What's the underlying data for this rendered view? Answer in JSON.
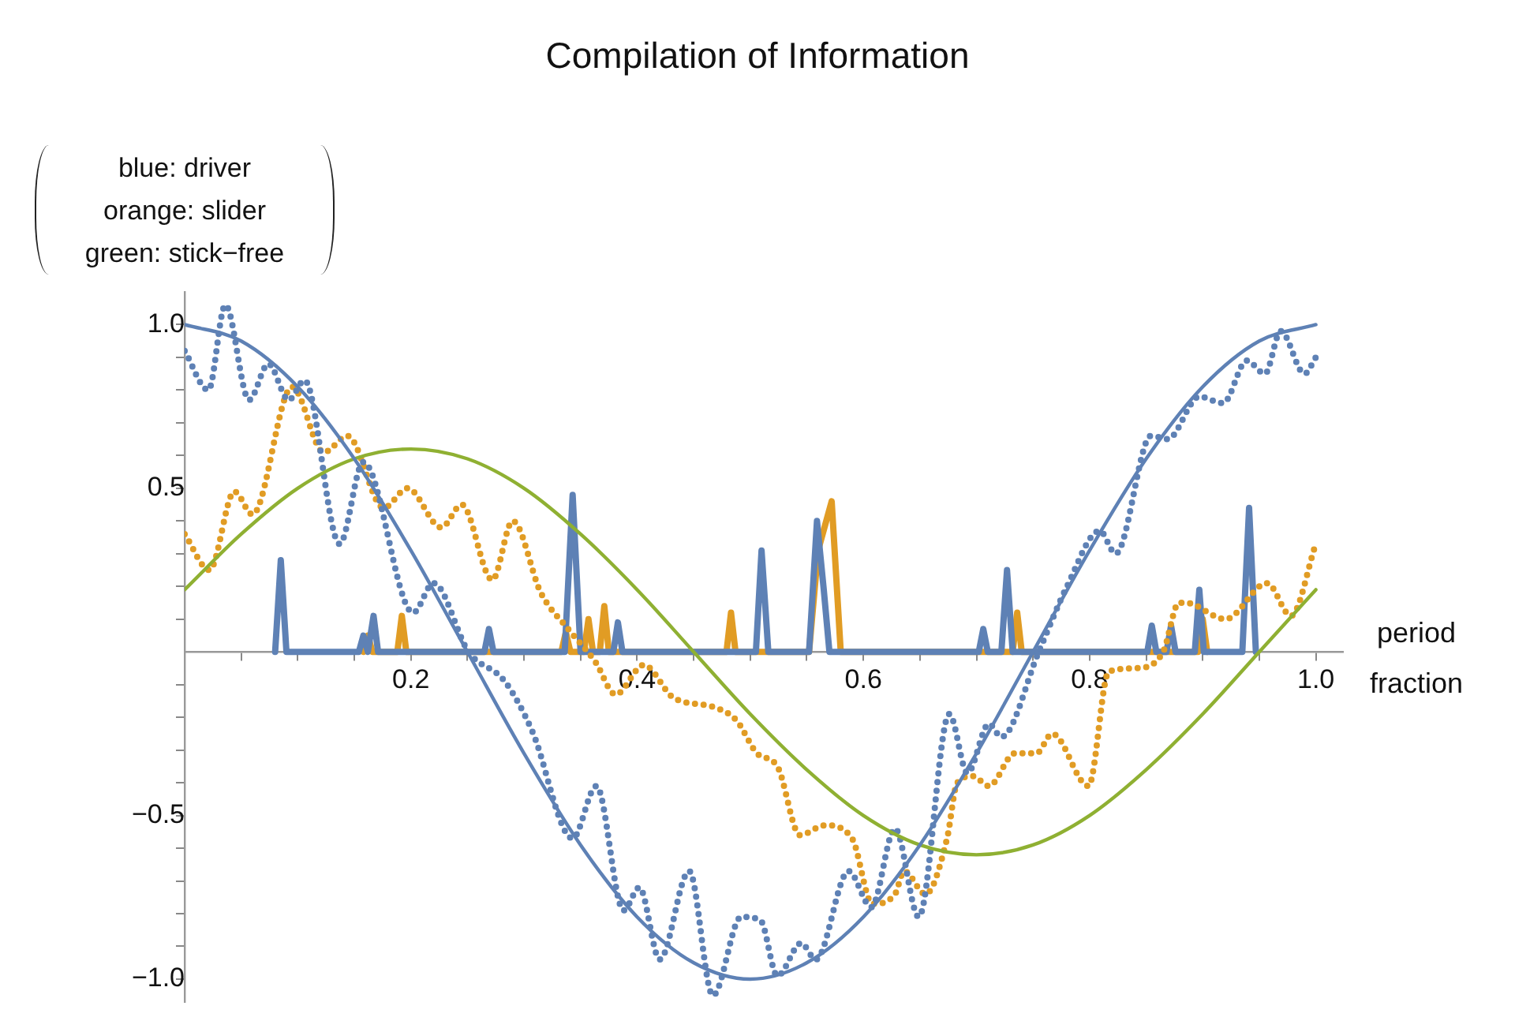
{
  "chart_data": {
    "type": "line",
    "title": "Compilation of Information",
    "xlabel": "period\nfraction",
    "ylabel": "blue: driver\norange: slider\ngreen: stick−free",
    "xlim": [
      0,
      1.024
    ],
    "ylim": [
      -1.07,
      1.1
    ],
    "xticks": [
      {
        "value": 0.05,
        "label": null
      },
      {
        "value": 0.1,
        "label": null
      },
      {
        "value": 0.15,
        "label": null
      },
      0.2,
      {
        "value": 0.25,
        "label": null
      },
      {
        "value": 0.3,
        "label": null
      },
      {
        "value": 0.35,
        "label": null
      },
      0.4,
      {
        "value": 0.45,
        "label": null
      },
      {
        "value": 0.5,
        "label": null
      },
      {
        "value": 0.55,
        "label": null
      },
      0.6,
      {
        "value": 0.65,
        "label": null
      },
      {
        "value": 0.7,
        "label": null
      },
      {
        "value": 0.75,
        "label": null
      },
      0.8,
      {
        "value": 0.85,
        "label": null
      },
      {
        "value": 0.9,
        "label": null
      },
      {
        "value": 0.95,
        "label": null
      },
      {
        "value": 1,
        "label": "1.0"
      }
    ],
    "yticks": [
      {
        "value": -1,
        "label": "−1.0"
      },
      {
        "value": -0.9,
        "label": null
      },
      {
        "value": -0.8,
        "label": null
      },
      {
        "value": -0.7,
        "label": null
      },
      {
        "value": -0.6,
        "label": null
      },
      {
        "value": -0.5,
        "label": "−0.5"
      },
      {
        "value": -0.4,
        "label": null
      },
      {
        "value": -0.3,
        "label": null
      },
      {
        "value": -0.2,
        "label": null
      },
      {
        "value": -0.1,
        "label": null
      },
      {
        "value": 0.1,
        "label": null
      },
      {
        "value": 0.2,
        "label": null
      },
      {
        "value": 0.3,
        "label": null
      },
      {
        "value": 0.4,
        "label": null
      },
      0.5,
      {
        "value": 0.6,
        "label": null
      },
      {
        "value": 0.7,
        "label": null
      },
      {
        "value": 0.8,
        "label": null
      },
      {
        "value": 0.9,
        "label": null
      },
      {
        "value": 1,
        "label": "1.0"
      }
    ],
    "legend": false,
    "marker": "none",
    "series": [
      {
        "color": "#5e81b5",
        "line_style": "solid",
        "x": [
          0,
          0.05,
          0.1,
          0.15,
          0.2,
          0.25,
          0.3,
          0.35,
          0.4,
          0.45,
          0.5,
          0.55,
          0.6,
          0.65,
          0.7,
          0.75,
          0.8,
          0.85,
          0.9,
          0.95,
          1
        ],
        "values": [
          1,
          0.95,
          0.81,
          0.59,
          0.31,
          0,
          -0.31,
          -0.59,
          -0.81,
          -0.95,
          -1,
          -0.95,
          -0.81,
          -0.59,
          -0.31,
          0,
          0.31,
          0.59,
          0.81,
          0.95,
          1
        ]
      },
      {
        "color": "#8fb032",
        "line_style": "solid",
        "x": [
          0,
          0.05,
          0.1,
          0.15,
          0.2,
          0.25,
          0.3,
          0.35,
          0.4,
          0.45,
          0.5,
          0.55,
          0.6,
          0.65,
          0.7,
          0.75,
          0.8,
          0.85,
          0.9,
          0.95,
          1
        ],
        "values": [
          0.19,
          0.36,
          0.5,
          0.59,
          0.62,
          0.59,
          0.5,
          0.36,
          0.19,
          0,
          -0.19,
          -0.36,
          -0.5,
          -0.59,
          -0.62,
          -0.59,
          -0.5,
          -0.36,
          -0.19,
          0,
          0.19
        ]
      },
      {
        "color": "#5e81b5",
        "line_style": "dotted",
        "x": [
          0,
          0.021,
          0.036,
          0.057,
          0.074,
          0.092,
          0.106,
          0.137,
          0.158,
          0.202,
          0.22,
          0.251,
          0.283,
          0.307,
          0.343,
          0.364,
          0.388,
          0.402,
          0.42,
          0.446,
          0.467,
          0.492,
          0.509,
          0.524,
          0.545,
          0.558,
          0.587,
          0.607,
          0.628,
          0.649,
          0.676,
          0.692,
          0.711,
          0.722,
          0.755,
          0.78,
          0.809,
          0.823,
          0.851,
          0.855,
          0.869,
          0.897,
          0.918,
          0.939,
          0.955,
          0.969,
          0.99,
          1
        ],
        "values": [
          0.92,
          0.8,
          1.06,
          0.77,
          0.88,
          0.77,
          0.83,
          0.33,
          0.58,
          0.12,
          0.21,
          0,
          -0.09,
          -0.24,
          -0.57,
          -0.41,
          -0.79,
          -0.72,
          -0.94,
          -0.67,
          -1.05,
          -0.81,
          -0.82,
          -0.99,
          -0.89,
          -0.94,
          -0.67,
          -0.78,
          -0.54,
          -0.81,
          -0.19,
          -0.37,
          -0.22,
          -0.26,
          0,
          0.2,
          0.37,
          0.3,
          0.65,
          0.66,
          0.65,
          0.78,
          0.76,
          0.89,
          0.85,
          0.98,
          0.85,
          0.9
        ]
      },
      {
        "color": "#e19c24",
        "line_style": "dotted",
        "x": [
          0,
          0.022,
          0.044,
          0.06,
          0.095,
          0.123,
          0.144,
          0.176,
          0.197,
          0.227,
          0.245,
          0.272,
          0.29,
          0.315,
          0.339,
          0.363,
          0.381,
          0.406,
          0.432,
          0.469,
          0.488,
          0.506,
          0.524,
          0.544,
          0.566,
          0.59,
          0.608,
          0.628,
          0.636,
          0.655,
          0.674,
          0.683,
          0.697,
          0.711,
          0.734,
          0.753,
          0.767,
          0.799,
          0.817,
          0.841,
          0.865,
          0.879,
          0.885,
          0.92,
          0.957,
          0.978,
          1
        ],
        "values": [
          0.36,
          0.25,
          0.49,
          0.42,
          0.81,
          0.61,
          0.66,
          0.44,
          0.5,
          0.38,
          0.45,
          0.22,
          0.4,
          0.18,
          0.07,
          -0.03,
          -0.13,
          -0.04,
          -0.14,
          -0.17,
          -0.21,
          -0.31,
          -0.35,
          -0.56,
          -0.53,
          -0.57,
          -0.77,
          -0.74,
          -0.67,
          -0.74,
          -0.57,
          -0.4,
          -0.38,
          -0.41,
          -0.31,
          -0.31,
          -0.25,
          -0.41,
          -0.06,
          -0.05,
          0,
          0.15,
          0.15,
          0.1,
          0.21,
          0.11,
          0.33
        ]
      },
      {
        "color": "#5e81b5",
        "line_style": "solid",
        "x": [
          0.08,
          0.085,
          0.09,
          0.154,
          0.158,
          0.162,
          0.163,
          0.167,
          0.171,
          0.265,
          0.269,
          0.273,
          0.336,
          0.343,
          0.35,
          0.379,
          0.383,
          0.387,
          0.505,
          0.51,
          0.516,
          0.552,
          0.559,
          0.565,
          0.57,
          0.702,
          0.706,
          0.71,
          0.722,
          0.727,
          0.732,
          0.851,
          0.855,
          0.859,
          0.868,
          0.872,
          0.876,
          0.893,
          0.897,
          0.901,
          0.935,
          0.941,
          0.947
        ],
        "values": [
          0,
          0.28,
          0,
          0,
          0.05,
          0,
          0,
          0.11,
          0,
          0,
          0.07,
          0,
          0,
          0.48,
          0,
          0,
          0.09,
          0,
          0,
          0.31,
          0,
          0,
          0.4,
          0.19,
          0,
          0,
          0.07,
          0,
          0,
          0.25,
          0,
          0,
          0.08,
          0,
          0,
          0.08,
          0,
          0,
          0.19,
          0,
          0,
          0.44,
          0
        ]
      },
      {
        "color": "#e19c24",
        "line_style": "solid",
        "x": [
          0.158,
          0.162,
          0.166,
          0.188,
          0.192,
          0.196,
          0.333,
          0.337,
          0.341,
          0.353,
          0.357,
          0.361,
          0.367,
          0.371,
          0.375,
          0.479,
          0.483,
          0.487,
          0.552,
          0.56,
          0.572,
          0.58,
          0.732,
          0.736,
          0.74,
          0.896,
          0.9,
          0.904
        ],
        "values": [
          0,
          0.05,
          0,
          0,
          0.11,
          0,
          0,
          0.06,
          0,
          0,
          0.1,
          0,
          0,
          0.14,
          0,
          0,
          0.12,
          0,
          0,
          0.31,
          0.46,
          0,
          0,
          0.12,
          0,
          0,
          0.1,
          0
        ]
      }
    ]
  }
}
